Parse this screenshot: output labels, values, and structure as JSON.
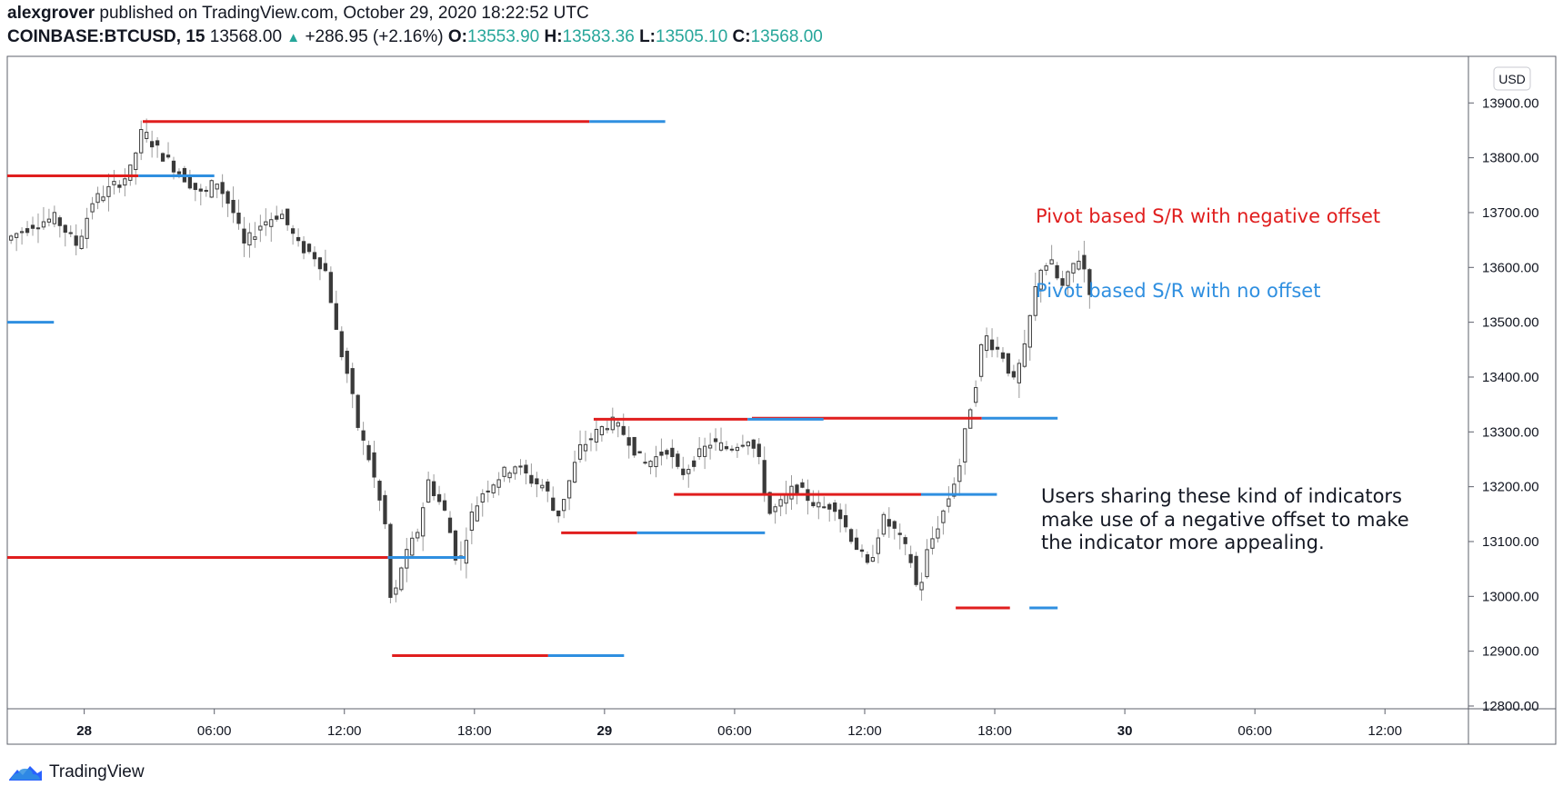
{
  "header": {
    "line1_user": "alexgrover",
    "line1_rest": " published on TradingView.com, October 29, 2020 18:22:52 UTC",
    "symbol": "COINBASE:BTCUSD, 15",
    "last": "13568.00",
    "change": "+286.95 (+2.16%)",
    "o_label": "O:",
    "o_value": "13553.90",
    "h_label": "H:",
    "h_value": "13583.36",
    "l_label": "L:",
    "l_value": "13505.10",
    "c_label": "C:",
    "c_value": "13568.00"
  },
  "currency_badge": "USD",
  "footer": {
    "brand": "TradingView",
    "logo_icon": "tradingview-logo-icon"
  },
  "colors": {
    "negative_offset": "#e01e1e",
    "no_offset": "#2f8fe0",
    "candle": "#3a3a3a",
    "wick": "#9a9a9a",
    "up_tick": "#26a69a"
  },
  "chart_data": {
    "type": "candlestick",
    "y_axis": {
      "ticks": [
        12800,
        12900,
        13000,
        13100,
        13200,
        13300,
        13400,
        13500,
        13600,
        13700,
        13800,
        13900
      ],
      "tick_labels": [
        "12800.00",
        "12900.00",
        "13000.00",
        "13100.00",
        "13200.00",
        "13300.00",
        "13400.00",
        "13500.00",
        "13600.00",
        "13700.00",
        "13800.00",
        "13900.00"
      ],
      "range": [
        12795,
        13985
      ]
    },
    "x_axis": {
      "unit": "hours since Oct 28 00:00 UTC",
      "range": [
        -3.55,
        63.85
      ],
      "ticks": [
        0,
        6,
        12,
        18,
        24,
        30,
        36,
        42,
        48,
        54,
        60
      ],
      "tick_labels": [
        "28",
        "06:00",
        "12:00",
        "18:00",
        "29",
        "06:00",
        "12:00",
        "18:00",
        "30",
        "06:00",
        "12:00"
      ],
      "bold_ticks": [
        "28",
        "29",
        "30"
      ]
    },
    "series": [
      {
        "name": "Pivot based S/R with negative offset",
        "color": "#e01e1e",
        "segments": [
          {
            "x0": -3.55,
            "x1": 2.5,
            "y": 13767
          },
          {
            "x0": 2.7,
            "x1": 23.3,
            "y": 13866
          },
          {
            "x0": -3.55,
            "x1": 14.0,
            "y": 13071
          },
          {
            "x0": 14.2,
            "x1": 21.4,
            "y": 12892
          },
          {
            "x0": 22.0,
            "x1": 25.5,
            "y": 13116
          },
          {
            "x0": 23.5,
            "x1": 30.6,
            "y": 13323
          },
          {
            "x0": 27.2,
            "x1": 38.6,
            "y": 13186
          },
          {
            "x0": 30.8,
            "x1": 41.4,
            "y": 13325
          },
          {
            "x0": 40.2,
            "x1": 42.7,
            "y": 12979
          }
        ]
      },
      {
        "name": "Pivot based S/R with no offset",
        "color": "#2f8fe0",
        "segments": [
          {
            "x0": -3.55,
            "x1": -1.4,
            "y": 13500
          },
          {
            "x0": 2.5,
            "x1": 6.0,
            "y": 13767
          },
          {
            "x0": 23.3,
            "x1": 26.8,
            "y": 13866
          },
          {
            "x0": 14.0,
            "x1": 17.6,
            "y": 13071
          },
          {
            "x0": 21.4,
            "x1": 24.9,
            "y": 12892
          },
          {
            "x0": 25.5,
            "x1": 31.4,
            "y": 13116
          },
          {
            "x0": 30.6,
            "x1": 34.1,
            "y": 13323
          },
          {
            "x0": 38.6,
            "x1": 42.1,
            "y": 13186
          },
          {
            "x0": 41.4,
            "x1": 44.9,
            "y": 13325
          },
          {
            "x0": 43.6,
            "x1": 44.9,
            "y": 12979
          }
        ]
      }
    ],
    "annotations": [
      {
        "text": "Pivot based S/R with negative offset",
        "color": "#e01e1e"
      },
      {
        "text": "Pivot based S/R with no offset",
        "color": "#2f8fe0"
      },
      {
        "lines": [
          "Users sharing these kind of indicators",
          "make use of a negative offset to make",
          "the indicator more appealing."
        ],
        "color": "#131722"
      }
    ],
    "price_path": [
      [
        -3.5,
        13650
      ],
      [
        -2.2,
        13680
      ],
      [
        -1.2,
        13690
      ],
      [
        -0.2,
        13640
      ],
      [
        0.5,
        13720
      ],
      [
        1.2,
        13740
      ],
      [
        2.2,
        13770
      ],
      [
        2.8,
        13850
      ],
      [
        3.6,
        13810
      ],
      [
        4.6,
        13770
      ],
      [
        5.6,
        13730
      ],
      [
        6.2,
        13760
      ],
      [
        7.0,
        13700
      ],
      [
        7.5,
        13640
      ],
      [
        8.3,
        13680
      ],
      [
        9.2,
        13700
      ],
      [
        10.0,
        13640
      ],
      [
        10.8,
        13620
      ],
      [
        11.3,
        13590
      ],
      [
        11.8,
        13470
      ],
      [
        12.3,
        13400
      ],
      [
        12.8,
        13300
      ],
      [
        13.2,
        13260
      ],
      [
        13.6,
        13200
      ],
      [
        14.0,
        13130
      ],
      [
        14.3,
        12970
      ],
      [
        14.7,
        13050
      ],
      [
        15.5,
        13120
      ],
      [
        16.0,
        13210
      ],
      [
        16.8,
        13150
      ],
      [
        17.4,
        13050
      ],
      [
        17.9,
        13140
      ],
      [
        18.5,
        13190
      ],
      [
        19.3,
        13220
      ],
      [
        20.0,
        13240
      ],
      [
        20.8,
        13210
      ],
      [
        21.4,
        13200
      ],
      [
        21.9,
        13140
      ],
      [
        22.5,
        13210
      ],
      [
        23.0,
        13270
      ],
      [
        23.8,
        13300
      ],
      [
        24.4,
        13320
      ],
      [
        25.2,
        13290
      ],
      [
        25.9,
        13240
      ],
      [
        26.4,
        13250
      ],
      [
        27.0,
        13270
      ],
      [
        27.6,
        13220
      ],
      [
        28.3,
        13250
      ],
      [
        29.0,
        13280
      ],
      [
        29.8,
        13270
      ],
      [
        30.8,
        13290
      ],
      [
        31.3,
        13240
      ],
      [
        31.7,
        13150
      ],
      [
        32.3,
        13170
      ],
      [
        32.9,
        13200
      ],
      [
        33.5,
        13180
      ],
      [
        34.1,
        13160
      ],
      [
        34.7,
        13170
      ],
      [
        35.2,
        13130
      ],
      [
        35.9,
        13080
      ],
      [
        36.3,
        13050
      ],
      [
        36.7,
        13110
      ],
      [
        37.0,
        13140
      ],
      [
        37.5,
        13120
      ],
      [
        38.1,
        13080
      ],
      [
        38.4,
        13050
      ],
      [
        38.6,
        12990
      ],
      [
        38.9,
        13070
      ],
      [
        39.4,
        13120
      ],
      [
        40.0,
        13180
      ],
      [
        40.5,
        13240
      ],
      [
        40.9,
        13330
      ],
      [
        41.3,
        13400
      ],
      [
        41.6,
        13480
      ],
      [
        42.0,
        13460
      ],
      [
        42.5,
        13440
      ],
      [
        43.0,
        13390
      ],
      [
        43.5,
        13450
      ],
      [
        43.8,
        13520
      ],
      [
        44.2,
        13600
      ],
      [
        44.7,
        13610
      ],
      [
        45.2,
        13560
      ],
      [
        45.6,
        13590
      ],
      [
        45.9,
        13620
      ],
      [
        46.2,
        13610
      ],
      [
        46.4,
        13560
      ]
    ]
  }
}
